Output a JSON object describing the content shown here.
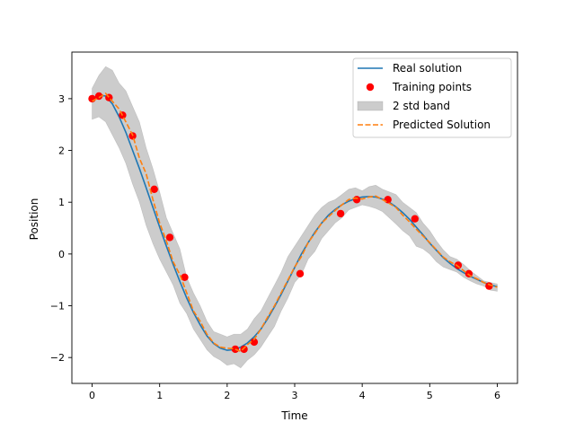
{
  "chart_data": {
    "type": "line",
    "title": "",
    "xlabel": "Time",
    "ylabel": "Position",
    "xlim": [
      -0.3,
      6.3
    ],
    "ylim": [
      -2.5,
      3.9
    ],
    "xticks": [
      0,
      1,
      2,
      3,
      4,
      5,
      6
    ],
    "xtick_labels": [
      "0",
      "1",
      "2",
      "3",
      "4",
      "5",
      "6"
    ],
    "yticks": [
      -2,
      -1,
      0,
      1,
      2,
      3
    ],
    "ytick_labels": [
      "−2",
      "−1",
      "0",
      "1",
      "2",
      "3"
    ],
    "grid": false,
    "legend_position": "upper right",
    "series": [
      {
        "name": "Real solution",
        "kind": "line",
        "color": "#1f77b4",
        "x": [
          0,
          0.1,
          0.2,
          0.3,
          0.4,
          0.5,
          0.6,
          0.7,
          0.8,
          0.9,
          1.0,
          1.1,
          1.2,
          1.3,
          1.4,
          1.5,
          1.6,
          1.7,
          1.8,
          1.9,
          2.0,
          2.1,
          2.2,
          2.3,
          2.4,
          2.5,
          2.6,
          2.7,
          2.8,
          2.9,
          3.0,
          3.1,
          3.2,
          3.3,
          3.4,
          3.5,
          3.6,
          3.7,
          3.8,
          3.9,
          4.0,
          4.1,
          4.2,
          4.3,
          4.4,
          4.5,
          4.6,
          4.7,
          4.8,
          4.9,
          5.0,
          5.1,
          5.2,
          5.3,
          5.4,
          5.5,
          5.6,
          5.7,
          5.8,
          5.9,
          6.0
        ],
        "y": [
          3.0,
          3.07,
          3.05,
          2.9,
          2.65,
          2.35,
          2.0,
          1.65,
          1.28,
          0.9,
          0.52,
          0.15,
          -0.2,
          -0.53,
          -0.85,
          -1.13,
          -1.37,
          -1.58,
          -1.73,
          -1.82,
          -1.86,
          -1.85,
          -1.8,
          -1.72,
          -1.6,
          -1.45,
          -1.25,
          -1.02,
          -0.78,
          -0.52,
          -0.26,
          0.0,
          0.22,
          0.42,
          0.6,
          0.75,
          0.86,
          0.95,
          1.02,
          1.07,
          1.1,
          1.11,
          1.1,
          1.06,
          1.0,
          0.91,
          0.8,
          0.67,
          0.52,
          0.37,
          0.21,
          0.07,
          -0.07,
          -0.18,
          -0.28,
          -0.36,
          -0.43,
          -0.49,
          -0.55,
          -0.6,
          -0.63
        ]
      },
      {
        "name": "Training points",
        "kind": "scatter",
        "color": "#ff0000",
        "x": [
          0.0,
          0.1,
          0.25,
          0.45,
          0.6,
          0.92,
          1.15,
          1.37,
          2.12,
          2.25,
          2.4,
          3.08,
          3.68,
          3.92,
          4.38,
          4.78,
          5.42,
          5.58,
          5.88
        ],
        "y": [
          3.0,
          3.05,
          3.02,
          2.68,
          2.28,
          1.25,
          0.32,
          -0.45,
          -1.84,
          -1.84,
          -1.7,
          -0.38,
          0.78,
          1.05,
          1.05,
          0.68,
          -0.22,
          -0.38,
          -0.62
        ]
      },
      {
        "name": "2 std band",
        "kind": "band",
        "color": "#cccccc",
        "x": [
          0,
          0.1,
          0.2,
          0.3,
          0.4,
          0.5,
          0.6,
          0.7,
          0.8,
          0.9,
          1.0,
          1.1,
          1.2,
          1.3,
          1.4,
          1.5,
          1.6,
          1.7,
          1.8,
          1.9,
          2.0,
          2.1,
          2.2,
          2.3,
          2.4,
          2.5,
          2.6,
          2.7,
          2.8,
          2.9,
          3.0,
          3.1,
          3.2,
          3.3,
          3.4,
          3.5,
          3.6,
          3.7,
          3.8,
          3.9,
          4.0,
          4.1,
          4.2,
          4.3,
          4.4,
          4.5,
          4.6,
          4.7,
          4.8,
          4.9,
          5.0,
          5.1,
          5.2,
          5.3,
          5.4,
          5.5,
          5.6,
          5.7,
          5.8,
          5.9,
          6.0
        ],
        "upper": [
          3.2,
          3.45,
          3.62,
          3.55,
          3.3,
          3.15,
          2.85,
          2.55,
          2.05,
          1.65,
          1.2,
          0.7,
          0.4,
          0.1,
          -0.45,
          -0.75,
          -1.0,
          -1.3,
          -1.5,
          -1.55,
          -1.6,
          -1.55,
          -1.55,
          -1.45,
          -1.25,
          -1.1,
          -0.85,
          -0.6,
          -0.35,
          -0.05,
          0.15,
          0.35,
          0.55,
          0.75,
          0.9,
          1.0,
          1.05,
          1.15,
          1.25,
          1.28,
          1.22,
          1.3,
          1.33,
          1.25,
          1.2,
          1.15,
          1.0,
          0.9,
          0.8,
          0.6,
          0.45,
          0.25,
          0.08,
          -0.05,
          -0.1,
          -0.2,
          -0.32,
          -0.42,
          -0.52,
          -0.55,
          -0.58
        ],
        "lower": [
          2.6,
          2.65,
          2.55,
          2.3,
          2.05,
          1.75,
          1.35,
          1.0,
          0.55,
          0.2,
          -0.1,
          -0.35,
          -0.6,
          -0.95,
          -1.15,
          -1.45,
          -1.65,
          -1.85,
          -1.98,
          -2.05,
          -2.15,
          -2.12,
          -2.2,
          -2.05,
          -1.95,
          -1.8,
          -1.6,
          -1.4,
          -1.1,
          -0.85,
          -0.55,
          -0.4,
          -0.1,
          0.05,
          0.3,
          0.45,
          0.6,
          0.7,
          0.85,
          0.9,
          0.95,
          0.92,
          0.88,
          0.82,
          0.7,
          0.58,
          0.45,
          0.35,
          0.15,
          0.1,
          0.0,
          -0.15,
          -0.25,
          -0.3,
          -0.35,
          -0.45,
          -0.52,
          -0.58,
          -0.62,
          -0.7,
          -0.72
        ]
      },
      {
        "name": "Predicted Solution",
        "kind": "dashed-line",
        "color": "#ff7f0e",
        "x": [
          0,
          0.1,
          0.2,
          0.3,
          0.4,
          0.5,
          0.6,
          0.7,
          0.8,
          0.9,
          1.0,
          1.1,
          1.2,
          1.3,
          1.4,
          1.5,
          1.6,
          1.7,
          1.8,
          1.9,
          2.0,
          2.1,
          2.2,
          2.3,
          2.4,
          2.5,
          2.6,
          2.7,
          2.8,
          2.9,
          3.0,
          3.1,
          3.2,
          3.3,
          3.4,
          3.5,
          3.6,
          3.7,
          3.8,
          3.9,
          4.0,
          4.1,
          4.2,
          4.3,
          4.4,
          4.5,
          4.6,
          4.7,
          4.8,
          4.9,
          5.0,
          5.1,
          5.2,
          5.3,
          5.4,
          5.5,
          5.6,
          5.7,
          5.8,
          5.9,
          6.0
        ],
        "y": [
          2.95,
          3.02,
          3.1,
          2.95,
          2.8,
          2.55,
          2.3,
          1.85,
          1.55,
          1.05,
          0.6,
          0.25,
          -0.15,
          -0.4,
          -0.75,
          -1.1,
          -1.3,
          -1.55,
          -1.72,
          -1.8,
          -1.82,
          -1.83,
          -1.88,
          -1.75,
          -1.65,
          -1.45,
          -1.22,
          -1.0,
          -0.75,
          -0.5,
          -0.25,
          -0.05,
          0.22,
          0.4,
          0.6,
          0.72,
          0.84,
          0.95,
          1.05,
          1.08,
          1.06,
          1.1,
          1.12,
          1.05,
          0.98,
          0.9,
          0.75,
          0.62,
          0.48,
          0.35,
          0.22,
          0.08,
          -0.06,
          -0.15,
          -0.22,
          -0.32,
          -0.42,
          -0.48,
          -0.55,
          -0.6,
          -0.64
        ]
      }
    ]
  }
}
